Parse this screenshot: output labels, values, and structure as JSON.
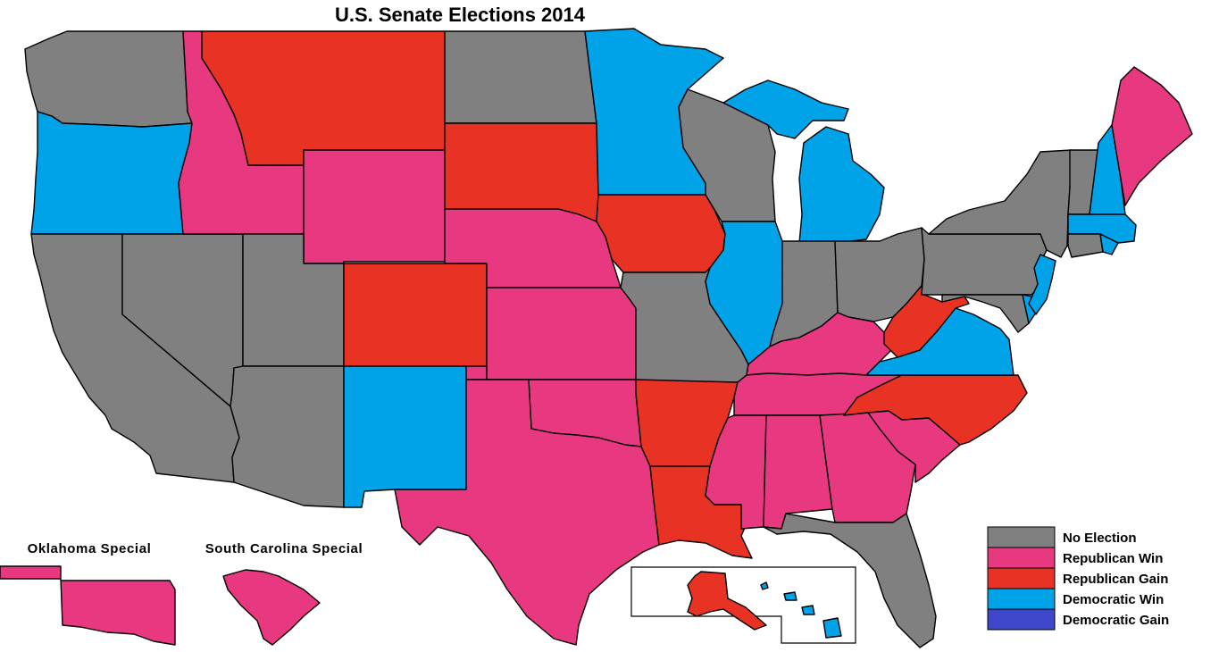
{
  "title": "U.S. Senate Elections 2014",
  "inset_labels": {
    "oklahoma_special": "Oklahoma Special",
    "south_carolina_special": "South Carolina Special"
  },
  "colors": {
    "no_election": "#808080",
    "republican_win": "#e8387f",
    "republican_gain": "#e83324",
    "democratic_win": "#00a2e8",
    "democratic_gain": "#3f48cc"
  },
  "legend": [
    {
      "key": "no_election",
      "label": "No Election"
    },
    {
      "key": "republican_win",
      "label": "Republican Win"
    },
    {
      "key": "republican_gain",
      "label": "Republican Gain"
    },
    {
      "key": "democratic_win",
      "label": "Democratic Win"
    },
    {
      "key": "democratic_gain",
      "label": "Democratic Gain"
    }
  ],
  "states": {
    "WA": "no_election",
    "OR": "democratic_win",
    "CA": "no_election",
    "NV": "no_election",
    "ID": "republican_win",
    "MT": "republican_gain",
    "WY": "republican_win",
    "UT": "no_election",
    "AZ": "no_election",
    "CO": "republican_gain",
    "NM": "democratic_win",
    "ND": "no_election",
    "SD": "republican_gain",
    "NE": "republican_win",
    "KS": "republican_win",
    "OK": "republican_win",
    "TX": "republican_win",
    "MN": "democratic_win",
    "IA": "republican_gain",
    "MO": "no_election",
    "AR": "republican_gain",
    "LA": "republican_gain",
    "WI": "no_election",
    "IL": "democratic_win",
    "MI": "democratic_win",
    "IN": "no_election",
    "OH": "no_election",
    "KY": "republican_win",
    "TN": "republican_win",
    "MS": "republican_win",
    "AL": "republican_win",
    "GA": "republican_win",
    "FL": "no_election",
    "SC": "republican_win",
    "NC": "republican_gain",
    "VA": "democratic_win",
    "WV": "republican_gain",
    "PA": "no_election",
    "NY": "no_election",
    "VT": "no_election",
    "NH": "democratic_win",
    "ME": "republican_win",
    "MA": "democratic_win",
    "CT": "no_election",
    "RI": "democratic_win",
    "NJ": "democratic_win",
    "DE": "democratic_win",
    "MD": "no_election",
    "AK": "republican_gain",
    "HI": "democratic_win",
    "OK_special": "republican_win",
    "SC_special": "republican_win"
  }
}
